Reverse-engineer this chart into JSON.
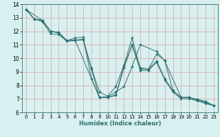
{
  "title": "",
  "xlabel": "Humidex (Indice chaleur)",
  "ylabel": "",
  "bg_color": "#d8f0f0",
  "line_color": "#2d7070",
  "grid_major_color": "#e8b8b8",
  "grid_minor_color": "#e8b8b8",
  "xlim": [
    -0.5,
    23.5
  ],
  "ylim": [
    6,
    14
  ],
  "xticks": [
    0,
    1,
    2,
    3,
    4,
    5,
    6,
    7,
    8,
    9,
    10,
    11,
    12,
    13,
    14,
    15,
    16,
    17,
    18,
    19,
    20,
    21,
    22,
    23
  ],
  "yticks": [
    6,
    7,
    8,
    9,
    10,
    11,
    12,
    13,
    14
  ],
  "series": [
    {
      "x": [
        0,
        1,
        2,
        3,
        4,
        5,
        6,
        7,
        8,
        9,
        10,
        11,
        12,
        13,
        14,
        15,
        16,
        17,
        18,
        19,
        20,
        21,
        22,
        23
      ],
      "y": [
        13.6,
        12.9,
        12.8,
        12.0,
        11.9,
        11.3,
        11.5,
        11.55,
        8.5,
        7.1,
        7.1,
        7.3,
        9.4,
        11.0,
        9.3,
        9.2,
        10.3,
        9.85,
        7.6,
        7.1,
        7.1,
        6.95,
        6.8,
        6.5
      ]
    },
    {
      "x": [
        0,
        1,
        2,
        3,
        4,
        5,
        6,
        7,
        8,
        9,
        10,
        11,
        12,
        13,
        14,
        15,
        16,
        17,
        18,
        19,
        20,
        21,
        22,
        23
      ],
      "y": [
        13.6,
        12.9,
        12.8,
        12.0,
        11.9,
        11.3,
        11.35,
        11.4,
        9.3,
        7.5,
        7.2,
        7.9,
        9.5,
        11.5,
        9.2,
        9.2,
        9.8,
        8.5,
        7.6,
        7.1,
        7.1,
        6.9,
        6.7,
        6.5
      ]
    },
    {
      "x": [
        0,
        2,
        3,
        4,
        5,
        6,
        9,
        10,
        11,
        12,
        13,
        14,
        16,
        17,
        19,
        20,
        21,
        22,
        23
      ],
      "y": [
        13.6,
        12.8,
        12.0,
        11.85,
        11.3,
        11.35,
        7.1,
        7.15,
        7.5,
        7.9,
        9.4,
        11.0,
        10.5,
        9.8,
        7.1,
        7.1,
        6.95,
        6.8,
        6.5
      ]
    },
    {
      "x": [
        0,
        1,
        2,
        3,
        4,
        5,
        6,
        7,
        8,
        9,
        10,
        11,
        12,
        13,
        14,
        15,
        16,
        17,
        18,
        19,
        20,
        21,
        22,
        23
      ],
      "y": [
        13.6,
        12.9,
        12.7,
        11.8,
        11.75,
        11.25,
        11.3,
        11.35,
        9.2,
        7.1,
        7.1,
        7.25,
        9.3,
        10.95,
        9.1,
        9.1,
        9.7,
        8.4,
        7.5,
        7.0,
        7.0,
        6.85,
        6.65,
        6.5
      ]
    }
  ]
}
